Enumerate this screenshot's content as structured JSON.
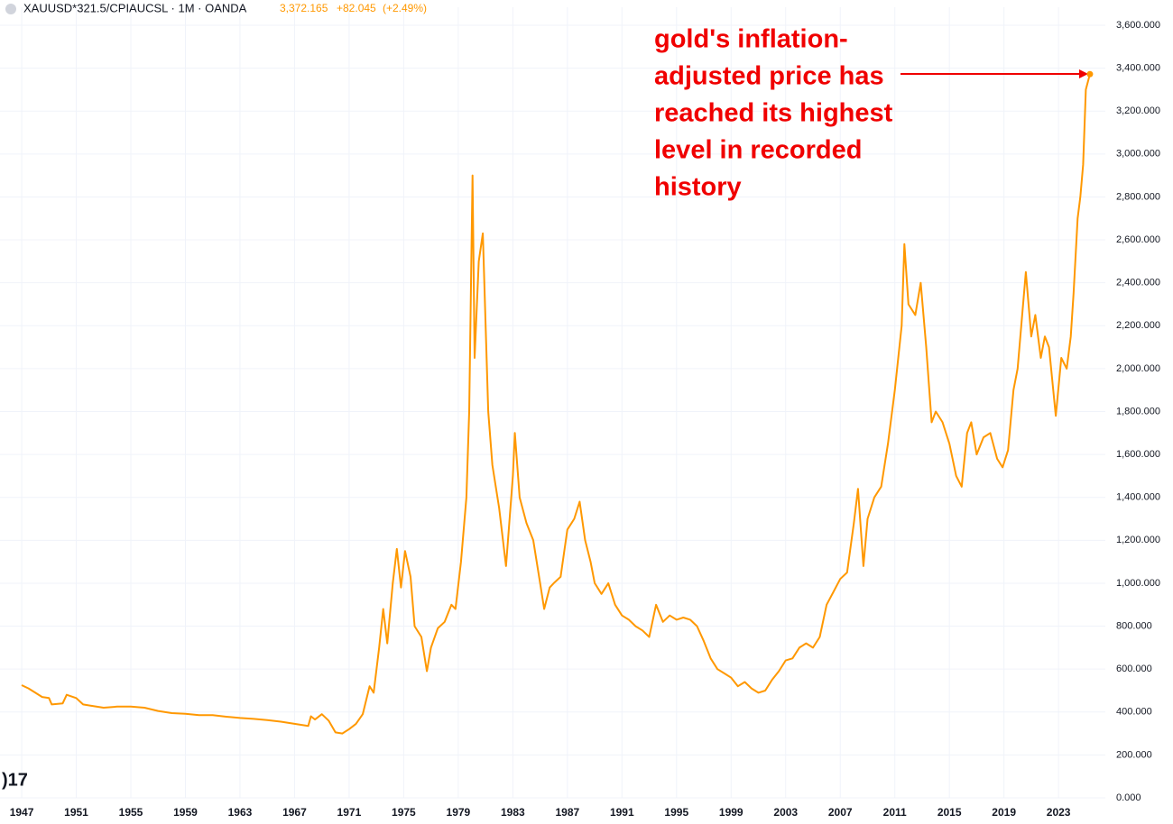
{
  "chart_data": {
    "type": "line",
    "header": {
      "symbol": "XAUUSD*321.5/CPIAUCSL · 1M · OANDA",
      "last_value": "3,372.165",
      "change": "+82.045",
      "change_pct": "(+2.49%)"
    },
    "annotation": [
      "gold's inflation-",
      "adjusted price has",
      "reached its highest",
      "level in recorded",
      "history"
    ],
    "x": [
      1947,
      1947.5,
      1948,
      1948.5,
      1949,
      1949.2,
      1950,
      1950.3,
      1951,
      1951.5,
      1952,
      1953,
      1954,
      1955,
      1956,
      1957,
      1958,
      1959,
      1960,
      1961,
      1962,
      1963,
      1964,
      1965,
      1966,
      1967,
      1968,
      1968.2,
      1968.5,
      1969,
      1969.5,
      1970,
      1970.5,
      1971,
      1971.5,
      1972,
      1972.5,
      1972.8,
      1973.2,
      1973.5,
      1973.8,
      1974.2,
      1974.5,
      1974.8,
      1975.1,
      1975.5,
      1975.8,
      1976.3,
      1976.7,
      1977,
      1977.5,
      1978,
      1978.5,
      1978.8,
      1979.2,
      1979.6,
      1979.8,
      1980.05,
      1980.2,
      1980.5,
      1980.8,
      1981.2,
      1981.5,
      1982,
      1982.5,
      1983,
      1983.15,
      1983.5,
      1984,
      1984.5,
      1985,
      1985.3,
      1985.7,
      1986,
      1986.5,
      1987,
      1987.5,
      1987.9,
      1988.3,
      1988.7,
      1989,
      1989.5,
      1990,
      1990.5,
      1991,
      1991.5,
      1992,
      1992.5,
      1993,
      1993.5,
      1994,
      1994.5,
      1995,
      1995.5,
      1996,
      1996.5,
      1997,
      1997.5,
      1998,
      1998.5,
      1999,
      1999.5,
      2000,
      2000.5,
      2001,
      2001.5,
      2002,
      2002.5,
      2003,
      2003.5,
      2004,
      2004.5,
      2005,
      2005.5,
      2006,
      2006.5,
      2007,
      2007.5,
      2008,
      2008.3,
      2008.7,
      2009,
      2009.5,
      2010,
      2010.5,
      2011,
      2011.5,
      2011.7,
      2012,
      2012.5,
      2012.9,
      2013.3,
      2013.7,
      2014,
      2014.5,
      2015,
      2015.5,
      2015.9,
      2016.3,
      2016.6,
      2017,
      2017.5,
      2018,
      2018.5,
      2018.9,
      2019.3,
      2019.7,
      2020,
      2020.6,
      2021,
      2021.3,
      2021.7,
      2022,
      2022.3,
      2022.8,
      2023.2,
      2023.6,
      2023.9,
      2024.1,
      2024.4,
      2024.6,
      2024.8,
      2025,
      2025.3
    ],
    "series": [
      {
        "name": "XAUUSD*321.5/CPIAUCSL",
        "color": "#ff9800",
        "values": [
          525,
          510,
          490,
          470,
          465,
          435,
          440,
          480,
          465,
          435,
          430,
          420,
          425,
          425,
          420,
          405,
          395,
          392,
          385,
          385,
          378,
          372,
          368,
          362,
          355,
          345,
          335,
          380,
          365,
          390,
          360,
          305,
          300,
          320,
          345,
          390,
          520,
          490,
          700,
          880,
          720,
          1000,
          1160,
          980,
          1150,
          1030,
          800,
          750,
          590,
          700,
          790,
          820,
          900,
          880,
          1100,
          1400,
          1800,
          2900,
          2050,
          2500,
          2630,
          1800,
          1550,
          1350,
          1080,
          1500,
          1700,
          1400,
          1280,
          1200,
          1000,
          880,
          980,
          1000,
          1030,
          1250,
          1300,
          1380,
          1200,
          1100,
          1000,
          950,
          1000,
          900,
          850,
          830,
          800,
          780,
          750,
          900,
          820,
          850,
          830,
          840,
          830,
          800,
          730,
          650,
          600,
          580,
          560,
          520,
          540,
          510,
          490,
          500,
          550,
          590,
          640,
          650,
          700,
          720,
          700,
          750,
          900,
          960,
          1020,
          1050,
          1280,
          1440,
          1080,
          1300,
          1400,
          1450,
          1650,
          1900,
          2200,
          2580,
          2300,
          2250,
          2400,
          2100,
          1750,
          1800,
          1750,
          1650,
          1500,
          1450,
          1700,
          1750,
          1600,
          1680,
          1700,
          1580,
          1540,
          1620,
          1900,
          2000,
          2450,
          2150,
          2250,
          2050,
          2150,
          2100,
          1780,
          2050,
          2000,
          2150,
          2350,
          2700,
          2800,
          2950,
          3300,
          3372.165
        ]
      }
    ],
    "xlim": [
      1945.41,
      2026.43
    ],
    "xticks": [
      1947,
      1951,
      1955,
      1959,
      1963,
      1967,
      1971,
      1975,
      1979,
      1983,
      1987,
      1991,
      1995,
      1999,
      2003,
      2007,
      2011,
      2015,
      2019,
      2023
    ],
    "ylim": [
      0,
      3600
    ],
    "yticks": [
      {
        "value": 0,
        "label": "0.000"
      },
      {
        "value": 200,
        "label": "200.000"
      },
      {
        "value": 400,
        "label": "400.000"
      },
      {
        "value": 600,
        "label": "600.000"
      },
      {
        "value": 800,
        "label": "800.000"
      },
      {
        "value": 1000,
        "label": "1,000.000"
      },
      {
        "value": 1200,
        "label": "1,200.000"
      },
      {
        "value": 1400,
        "label": "1,400.000"
      },
      {
        "value": 1600,
        "label": "1,600.000"
      },
      {
        "value": 1800,
        "label": "1,800.000"
      },
      {
        "value": 2000,
        "label": "2,000.000"
      },
      {
        "value": 2200,
        "label": "2,200.000"
      },
      {
        "value": 2400,
        "label": "2,400.000"
      },
      {
        "value": 2600,
        "label": "2,600.000"
      },
      {
        "value": 2800,
        "label": "2,800.000"
      },
      {
        "value": 3000,
        "label": "3,000.000"
      },
      {
        "value": 3200,
        "label": "3,200.000"
      },
      {
        "value": 3400,
        "label": "3,400.000"
      },
      {
        "value": 3600,
        "label": "3,600.000"
      }
    ],
    "grid": true
  }
}
